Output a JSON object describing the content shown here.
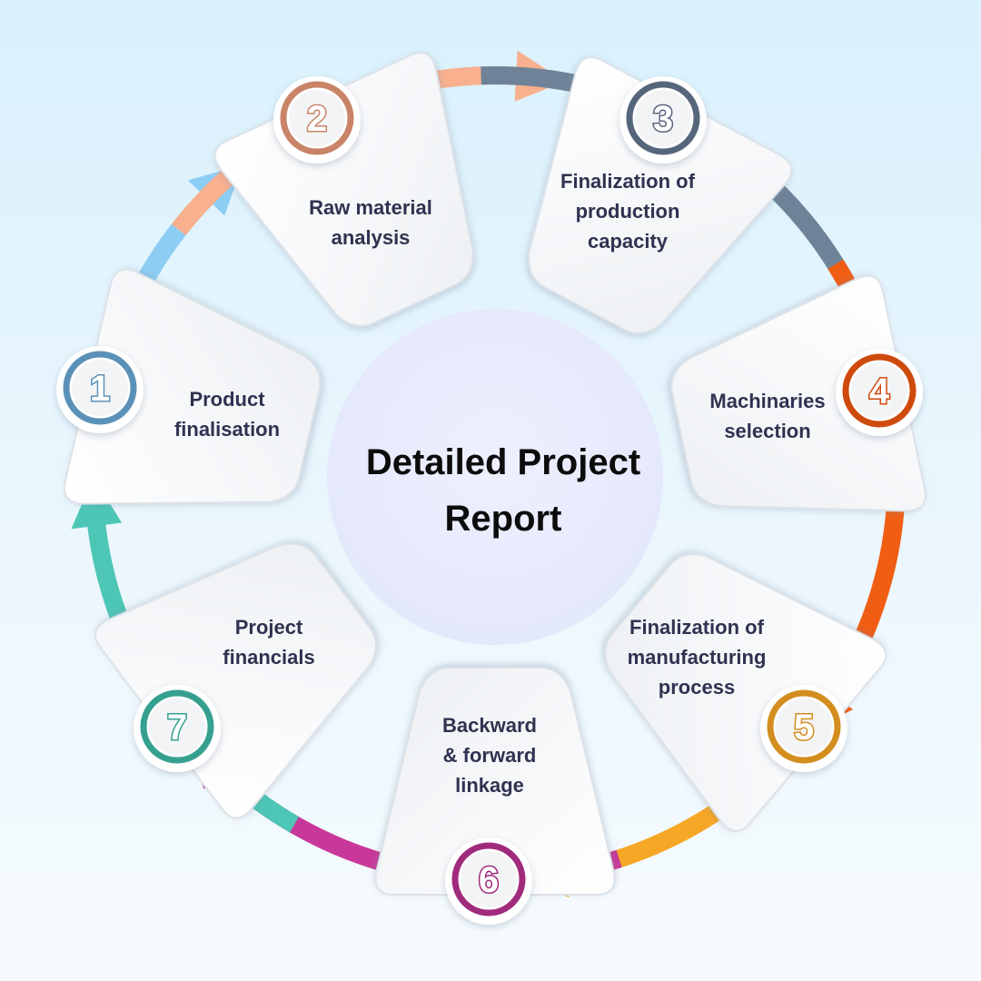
{
  "diagram": {
    "center_title": "Detailed Project Report",
    "steps": [
      {
        "number": "1",
        "label_lines": [
          "Product",
          "finalisation"
        ],
        "color": "#8ecdf3",
        "ring_color": "#5b91b8"
      },
      {
        "number": "2",
        "label_lines": [
          "Raw material",
          "analysis"
        ],
        "color": "#f8b08e",
        "ring_color": "#c98467"
      },
      {
        "number": "3",
        "label_lines": [
          "Finalization of",
          "production",
          "capacity"
        ],
        "color": "#6f8398",
        "ring_color": "#56667a"
      },
      {
        "number": "4",
        "label_lines": [
          "Machinaries",
          "selection"
        ],
        "color": "#f05e14",
        "ring_color": "#cf4a0d"
      },
      {
        "number": "5",
        "label_lines": [
          "Finalization of",
          "manufacturing",
          "process"
        ],
        "color": "#f7a726",
        "ring_color": "#d48e1f"
      },
      {
        "number": "6",
        "label_lines": [
          "Backward",
          "& forward",
          "linkage"
        ],
        "color": "#c8389a",
        "ring_color": "#a02b7c"
      },
      {
        "number": "7",
        "label_lines": [
          "Project",
          "financials"
        ],
        "color": "#4dc6b6",
        "ring_color": "#36a090"
      }
    ]
  }
}
